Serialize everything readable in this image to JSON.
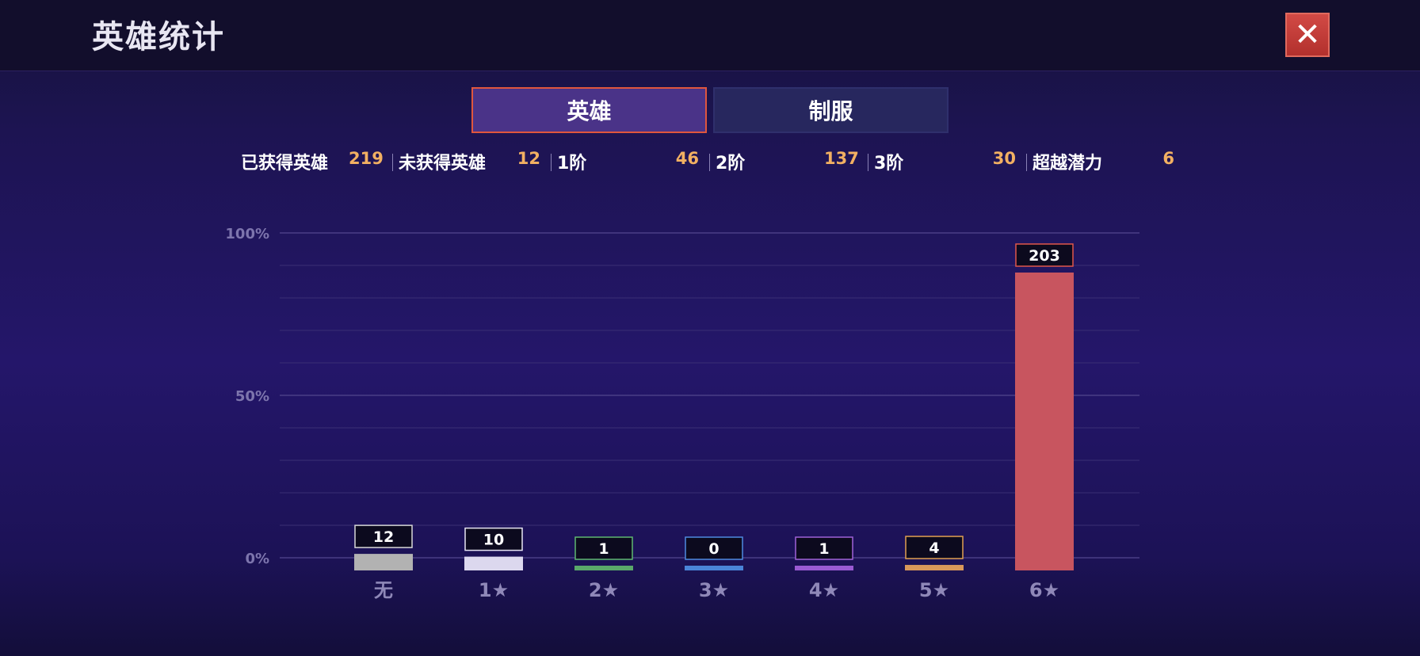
{
  "header": {
    "title": "英雄统计",
    "close_icon": "close-icon"
  },
  "tabs": [
    {
      "label": "英雄",
      "active": true
    },
    {
      "label": "制服",
      "active": false
    }
  ],
  "stats": [
    {
      "label": "已获得英雄",
      "value": "219"
    },
    {
      "label": "未获得英雄",
      "value": "12"
    },
    {
      "label": "1阶",
      "value": "46"
    },
    {
      "label": "2阶",
      "value": "137"
    },
    {
      "label": "3阶",
      "value": "30"
    },
    {
      "label": "超越潜力",
      "value": "6"
    }
  ],
  "chart_data": {
    "type": "bar",
    "categories": [
      "无",
      "1★",
      "2★",
      "3★",
      "4★",
      "5★",
      "6★"
    ],
    "values": [
      12,
      10,
      1,
      0,
      1,
      4,
      203
    ],
    "data_labels": [
      "12",
      "10",
      "1",
      "0",
      "1",
      "4",
      "203"
    ],
    "bar_colors": [
      "#b2b2b2",
      "#dcd8ee",
      "#5aa86a",
      "#4a84d8",
      "#9a5ad2",
      "#d9985a",
      "#c8555f"
    ],
    "label_border_colors": [
      "#d8d8d8",
      "#e8e6f4",
      "#5fb870",
      "#4f8ae0",
      "#a062d8",
      "#e0a050",
      "#e0564a"
    ],
    "y_ticks": [
      "100%",
      "50%",
      "0%"
    ],
    "ylim": [
      0,
      100
    ],
    "grid": true
  }
}
